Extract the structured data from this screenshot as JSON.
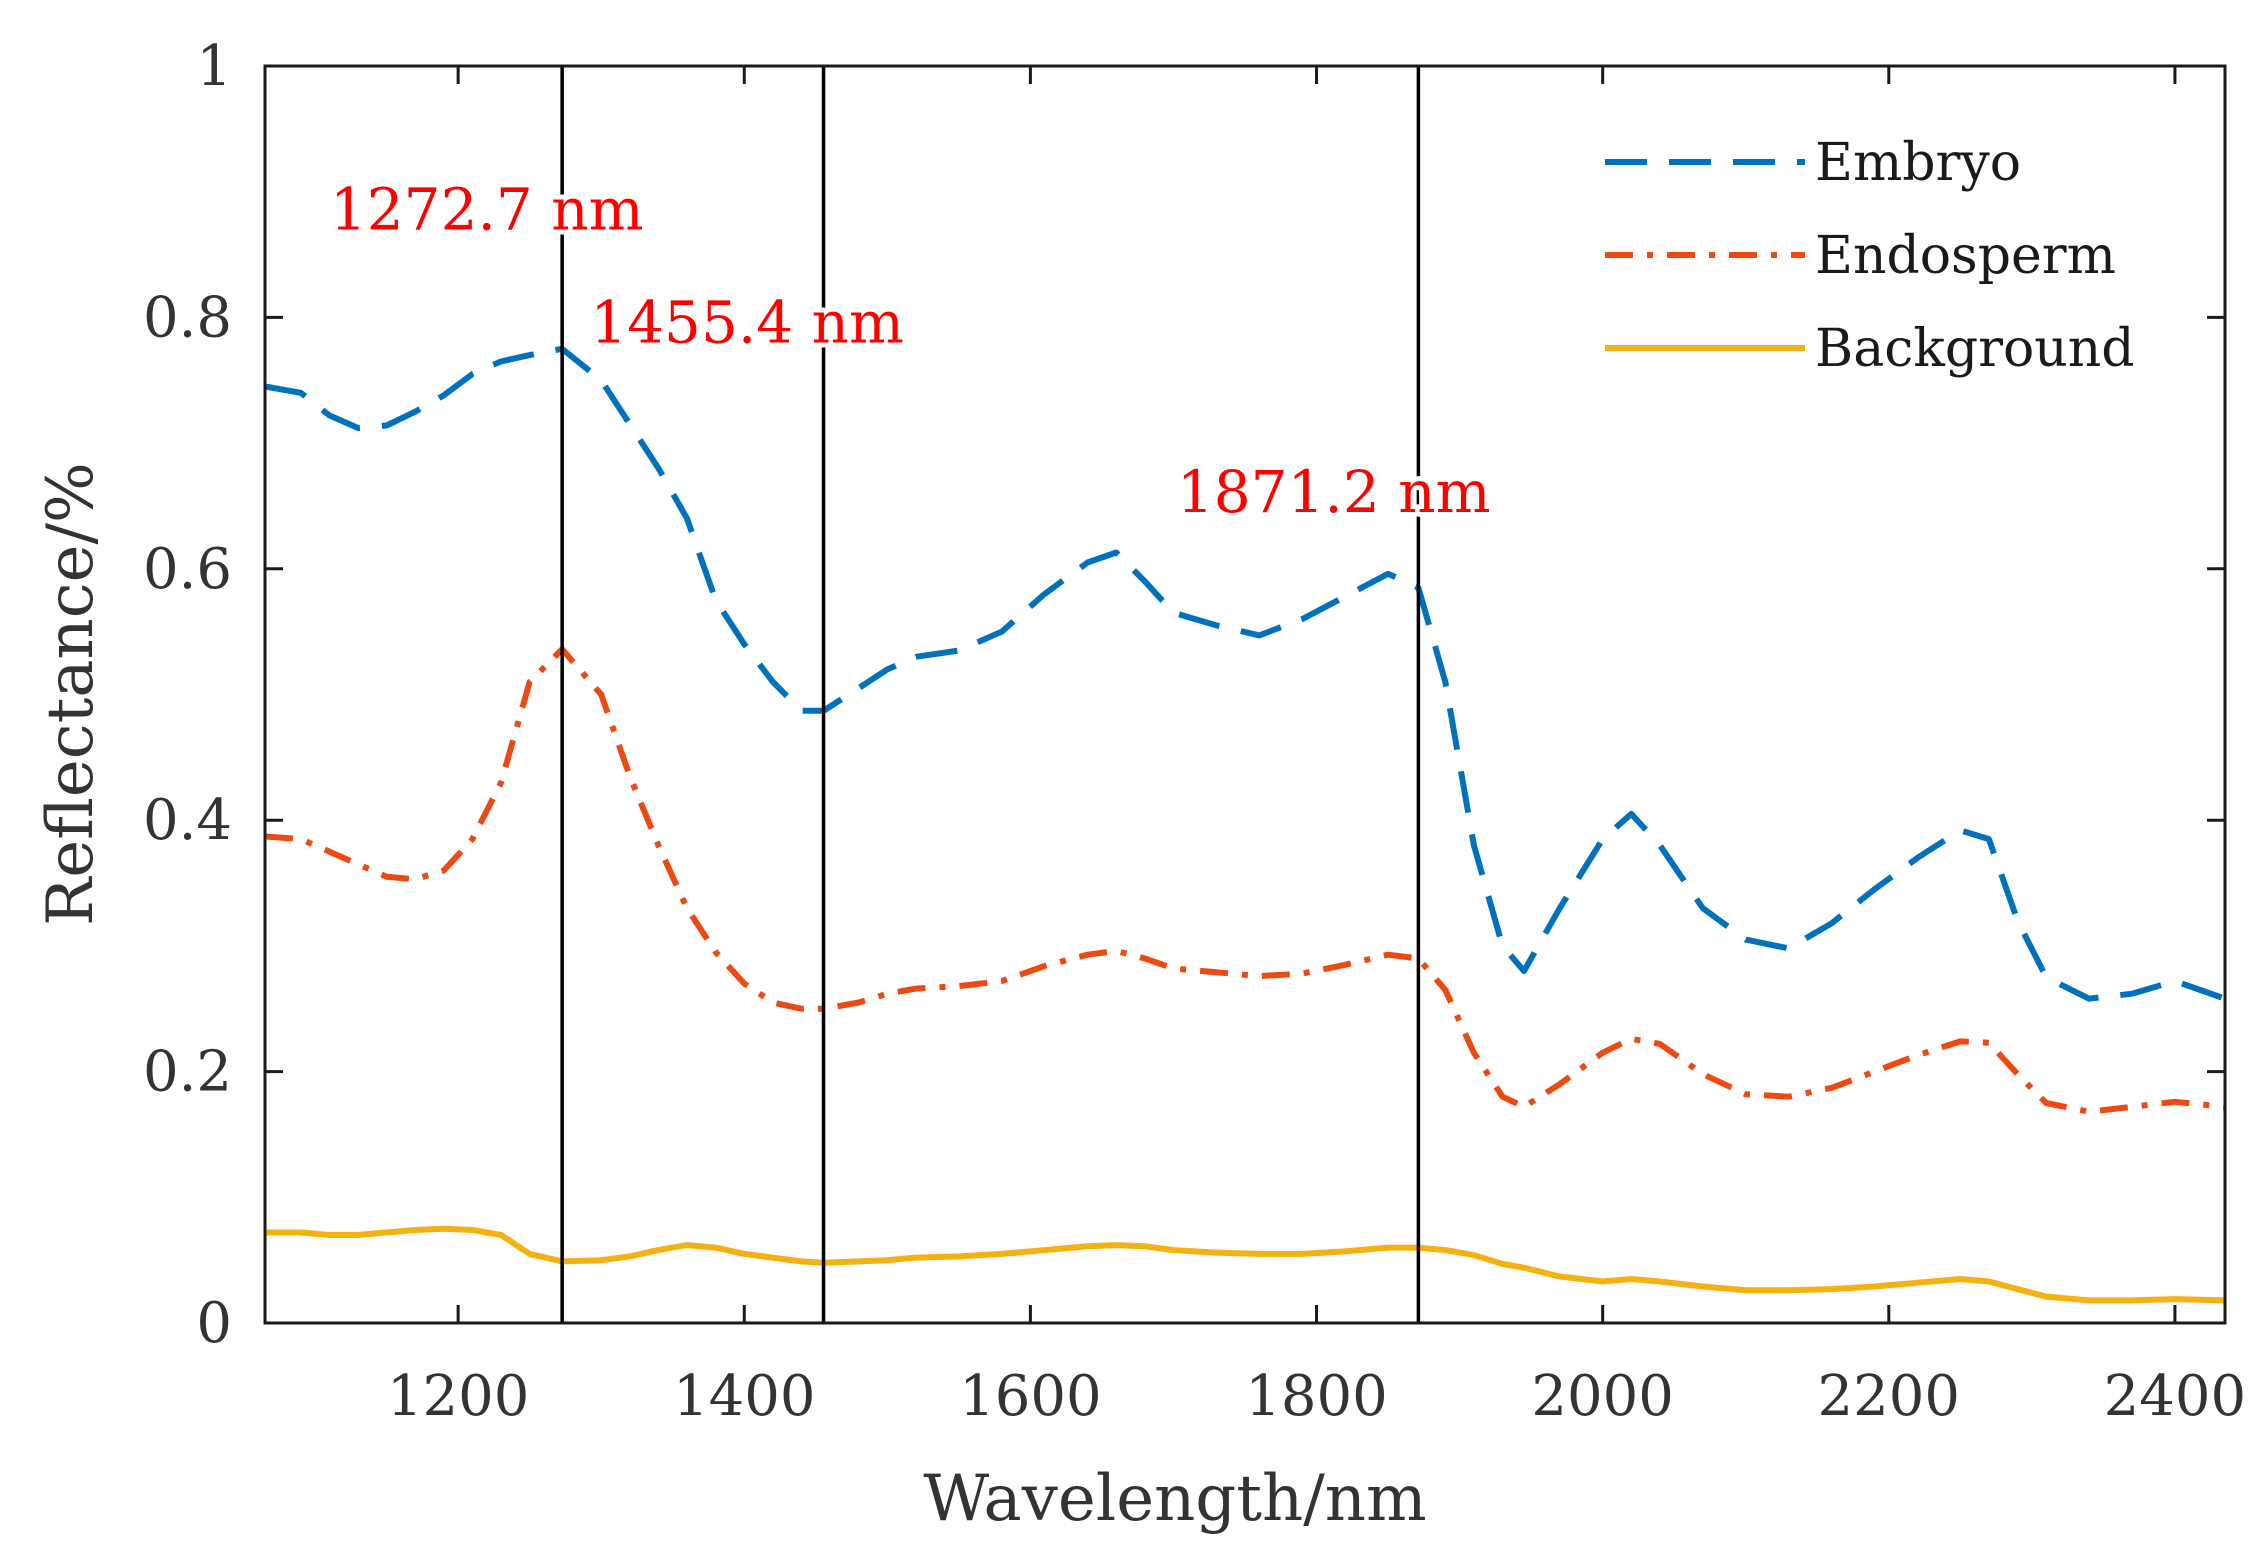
{
  "chart_data": {
    "type": "line",
    "title": "",
    "xlabel": "Wavelength/nm",
    "ylabel": "Reflectance/%",
    "xlim": [
      1065,
      2435
    ],
    "ylim": [
      0,
      1
    ],
    "x_ticks": [
      1200,
      1400,
      1600,
      1800,
      2000,
      2200,
      2400
    ],
    "x_tick_labels": [
      "1200",
      "1400",
      "1600",
      "1800",
      "2000",
      "2200",
      "2400"
    ],
    "y_ticks": [
      0,
      0.2,
      0.4,
      0.6,
      0.8,
      1
    ],
    "y_tick_labels": [
      "0",
      "0.2",
      "0.4",
      "0.6",
      "0.8",
      "1"
    ],
    "grid": false,
    "legend_position": "top-right",
    "annotation_color": "#ff0000",
    "annotations": [
      {
        "label": "1272.7 nm",
        "x": 1272.7,
        "label_x": 1220,
        "label_y": 0.87
      },
      {
        "label": "1455.4 nm",
        "x": 1455.4,
        "label_x": 1402,
        "label_y": 0.78
      },
      {
        "label": "1871.2 nm",
        "x": 1871.2,
        "label_x": 1812,
        "label_y": 0.645
      }
    ],
    "series": [
      {
        "name": "Embryo",
        "style": "dashed",
        "color": "#0072bd",
        "x": [
          1065,
          1090,
          1110,
          1130,
          1150,
          1170,
          1190,
          1210,
          1230,
          1250,
          1272.7,
          1300,
          1320,
          1340,
          1360,
          1380,
          1400,
          1420,
          1440,
          1455.4,
          1480,
          1500,
          1520,
          1550,
          1580,
          1610,
          1640,
          1660,
          1680,
          1700,
          1730,
          1760,
          1790,
          1820,
          1850,
          1871.2,
          1890,
          1910,
          1930,
          1945,
          1970,
          2000,
          2020,
          2040,
          2070,
          2100,
          2130,
          2160,
          2190,
          2220,
          2250,
          2270,
          2290,
          2310,
          2340,
          2370,
          2400,
          2435
        ],
        "y": [
          0.745,
          0.74,
          0.722,
          0.712,
          0.714,
          0.725,
          0.738,
          0.755,
          0.765,
          0.77,
          0.775,
          0.75,
          0.715,
          0.68,
          0.64,
          0.575,
          0.54,
          0.51,
          0.487,
          0.487,
          0.505,
          0.52,
          0.53,
          0.535,
          0.55,
          0.58,
          0.605,
          0.613,
          0.59,
          0.565,
          0.555,
          0.547,
          0.56,
          0.578,
          0.596,
          0.585,
          0.51,
          0.38,
          0.3,
          0.28,
          0.33,
          0.385,
          0.405,
          0.38,
          0.33,
          0.305,
          0.298,
          0.318,
          0.345,
          0.37,
          0.392,
          0.385,
          0.32,
          0.275,
          0.258,
          0.262,
          0.272,
          0.258
        ]
      },
      {
        "name": "Endosperm",
        "style": "dashdot",
        "color": "#ed4a11",
        "x": [
          1065,
          1090,
          1110,
          1130,
          1150,
          1170,
          1190,
          1210,
          1230,
          1250,
          1272.7,
          1300,
          1320,
          1340,
          1360,
          1380,
          1400,
          1420,
          1440,
          1455.4,
          1480,
          1500,
          1520,
          1550,
          1580,
          1610,
          1640,
          1660,
          1680,
          1700,
          1730,
          1760,
          1790,
          1820,
          1850,
          1871.2,
          1890,
          1910,
          1930,
          1945,
          1970,
          2000,
          2020,
          2040,
          2070,
          2100,
          2130,
          2160,
          2190,
          2220,
          2250,
          2270,
          2290,
          2310,
          2340,
          2370,
          2400,
          2435
        ],
        "y": [
          0.387,
          0.385,
          0.375,
          0.365,
          0.355,
          0.353,
          0.36,
          0.385,
          0.43,
          0.51,
          0.536,
          0.5,
          0.435,
          0.38,
          0.33,
          0.295,
          0.27,
          0.255,
          0.25,
          0.25,
          0.255,
          0.262,
          0.266,
          0.268,
          0.272,
          0.284,
          0.293,
          0.296,
          0.29,
          0.282,
          0.279,
          0.276,
          0.278,
          0.285,
          0.293,
          0.29,
          0.265,
          0.215,
          0.18,
          0.172,
          0.19,
          0.215,
          0.226,
          0.222,
          0.198,
          0.182,
          0.18,
          0.187,
          0.2,
          0.213,
          0.224,
          0.223,
          0.198,
          0.175,
          0.168,
          0.172,
          0.176,
          0.172
        ]
      },
      {
        "name": "Background",
        "style": "solid",
        "color": "#f5b111",
        "x": [
          1065,
          1090,
          1110,
          1130,
          1150,
          1170,
          1190,
          1210,
          1230,
          1250,
          1272.7,
          1300,
          1320,
          1340,
          1360,
          1380,
          1400,
          1420,
          1440,
          1455.4,
          1480,
          1500,
          1520,
          1550,
          1580,
          1610,
          1640,
          1660,
          1680,
          1700,
          1730,
          1760,
          1790,
          1820,
          1850,
          1871.2,
          1890,
          1910,
          1930,
          1945,
          1970,
          2000,
          2020,
          2040,
          2070,
          2100,
          2130,
          2160,
          2190,
          2220,
          2250,
          2270,
          2290,
          2310,
          2340,
          2370,
          2400,
          2435
        ],
        "y": [
          0.072,
          0.072,
          0.07,
          0.07,
          0.072,
          0.074,
          0.075,
          0.074,
          0.07,
          0.055,
          0.049,
          0.05,
          0.053,
          0.058,
          0.062,
          0.06,
          0.055,
          0.052,
          0.049,
          0.048,
          0.049,
          0.05,
          0.052,
          0.053,
          0.055,
          0.058,
          0.061,
          0.062,
          0.061,
          0.058,
          0.056,
          0.055,
          0.055,
          0.057,
          0.06,
          0.06,
          0.058,
          0.054,
          0.047,
          0.044,
          0.037,
          0.033,
          0.035,
          0.033,
          0.029,
          0.026,
          0.026,
          0.027,
          0.029,
          0.032,
          0.035,
          0.033,
          0.027,
          0.021,
          0.018,
          0.018,
          0.019,
          0.018
        ]
      }
    ]
  }
}
